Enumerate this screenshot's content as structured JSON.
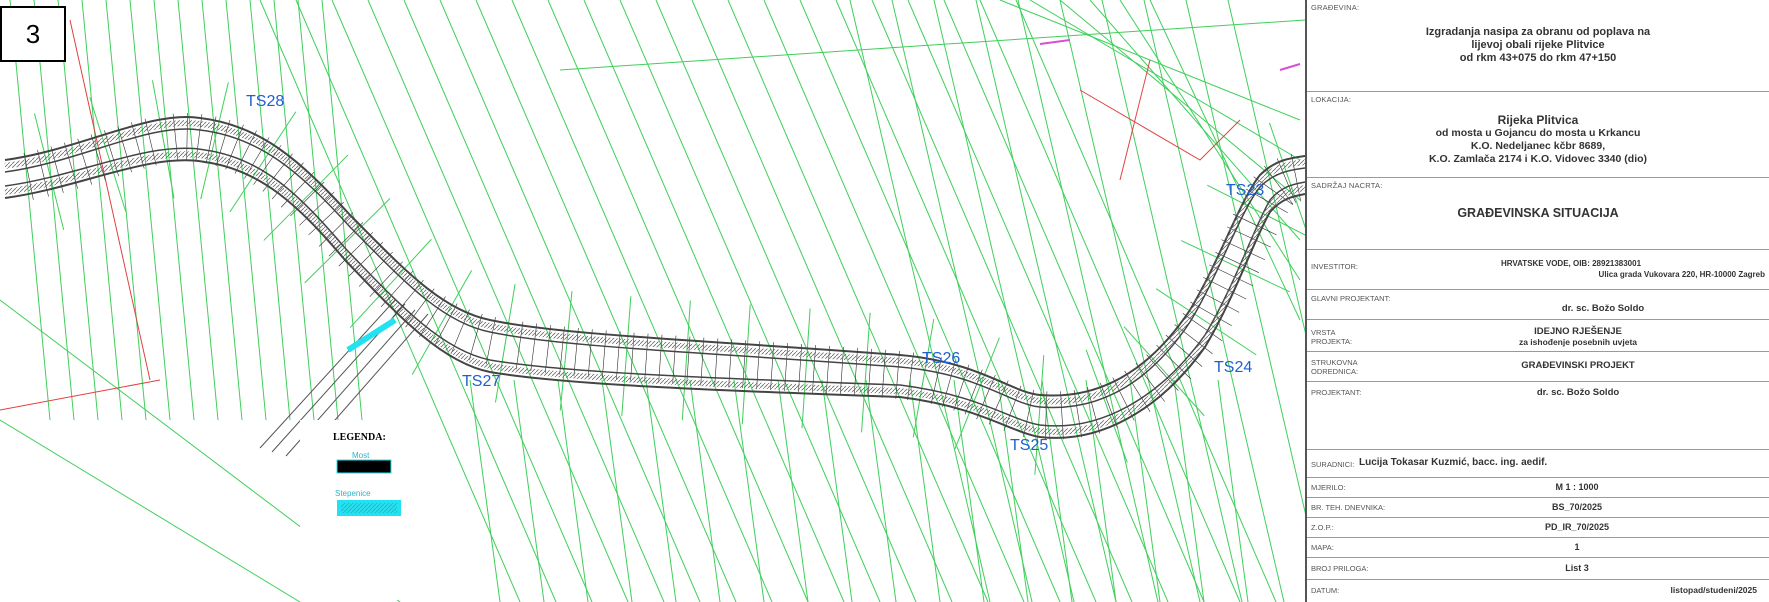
{
  "page_number": "3",
  "cross_sections": [
    "TS28",
    "TS27",
    "TS26",
    "TS25",
    "TS24",
    "TS23"
  ],
  "legend": {
    "title": "LEGENDA:",
    "items": [
      {
        "label": "Most",
        "color": "#000000"
      },
      {
        "label": "Stepenice",
        "color": "#22e1f0"
      }
    ]
  },
  "colors": {
    "parcel_lines": "#3fcf5a",
    "section_labels": "#1f5fd0",
    "levee": "#444444",
    "boundary": "#e04040",
    "cadastre_text": "#2ab3c8"
  },
  "title_block": {
    "gradevina_label": "GRAĐEVINA:",
    "gradevina_lines": [
      "Izgradanja nasipa za obranu od poplava na",
      "lijevoj obali rijeke Plitvice",
      "od rkm 43+075 do rkm 47+150"
    ],
    "lokacija_label": "LOKACIJA:",
    "lokacija_lines": [
      "Rijeka Plitvica",
      "od mosta u Gojancu do mosta u Krkancu",
      "K.O. Nedeljanec kčbr 8689,",
      "K.O. Zamlača 2174 i K.O. Vidovec 3340 (dio)"
    ],
    "sadrzaj_label": "SADRŽAJ NACRTA:",
    "sadrzaj_value": "GRAĐEVINSKA SITUACIJA",
    "investitor_label": "INVESTITOR:",
    "investitor_lines": [
      "HRVATSKE VODE, OIB: 28921383001",
      "Ulica grada Vukovara 220, HR-10000 Zagreb"
    ],
    "glavni_label": "GLAVNI PROJEKTANT:",
    "glavni_value": "dr. sc. Božo Soldo",
    "vrsta_label_lines": [
      "VRSTA",
      "PROJEKTA:"
    ],
    "vrsta_lines": [
      "IDEJNO RJEŠENJE",
      "za ishođenje posebnih uvjeta"
    ],
    "strukovna_label_lines": [
      "STRUKOVNA",
      "ODREDNICA:"
    ],
    "strukovna_value": "GRAĐEVINSKI PROJEKT",
    "projektant_label": "PROJEKTANT:",
    "projektant_value": "dr. sc. Božo Soldo",
    "suradnici_label": "SURADNICI:",
    "suradnici_value": "Lucija Tokasar Kuzmić, bacc. ing. aedif.",
    "rows": [
      {
        "label": "MJERILO:",
        "value": "M 1 : 1000"
      },
      {
        "label": "BR. TEH. DNEVNIKA:",
        "value": "BS_70/2025"
      },
      {
        "label": "Z.O.P.:",
        "value": "PD_IR_70/2025"
      },
      {
        "label": "MAPA:",
        "value": "1"
      },
      {
        "label": "BROJ PRILOGA:",
        "value": "List 3"
      },
      {
        "label": "DATUM:",
        "value": "listopad/studeni/2025"
      }
    ]
  }
}
